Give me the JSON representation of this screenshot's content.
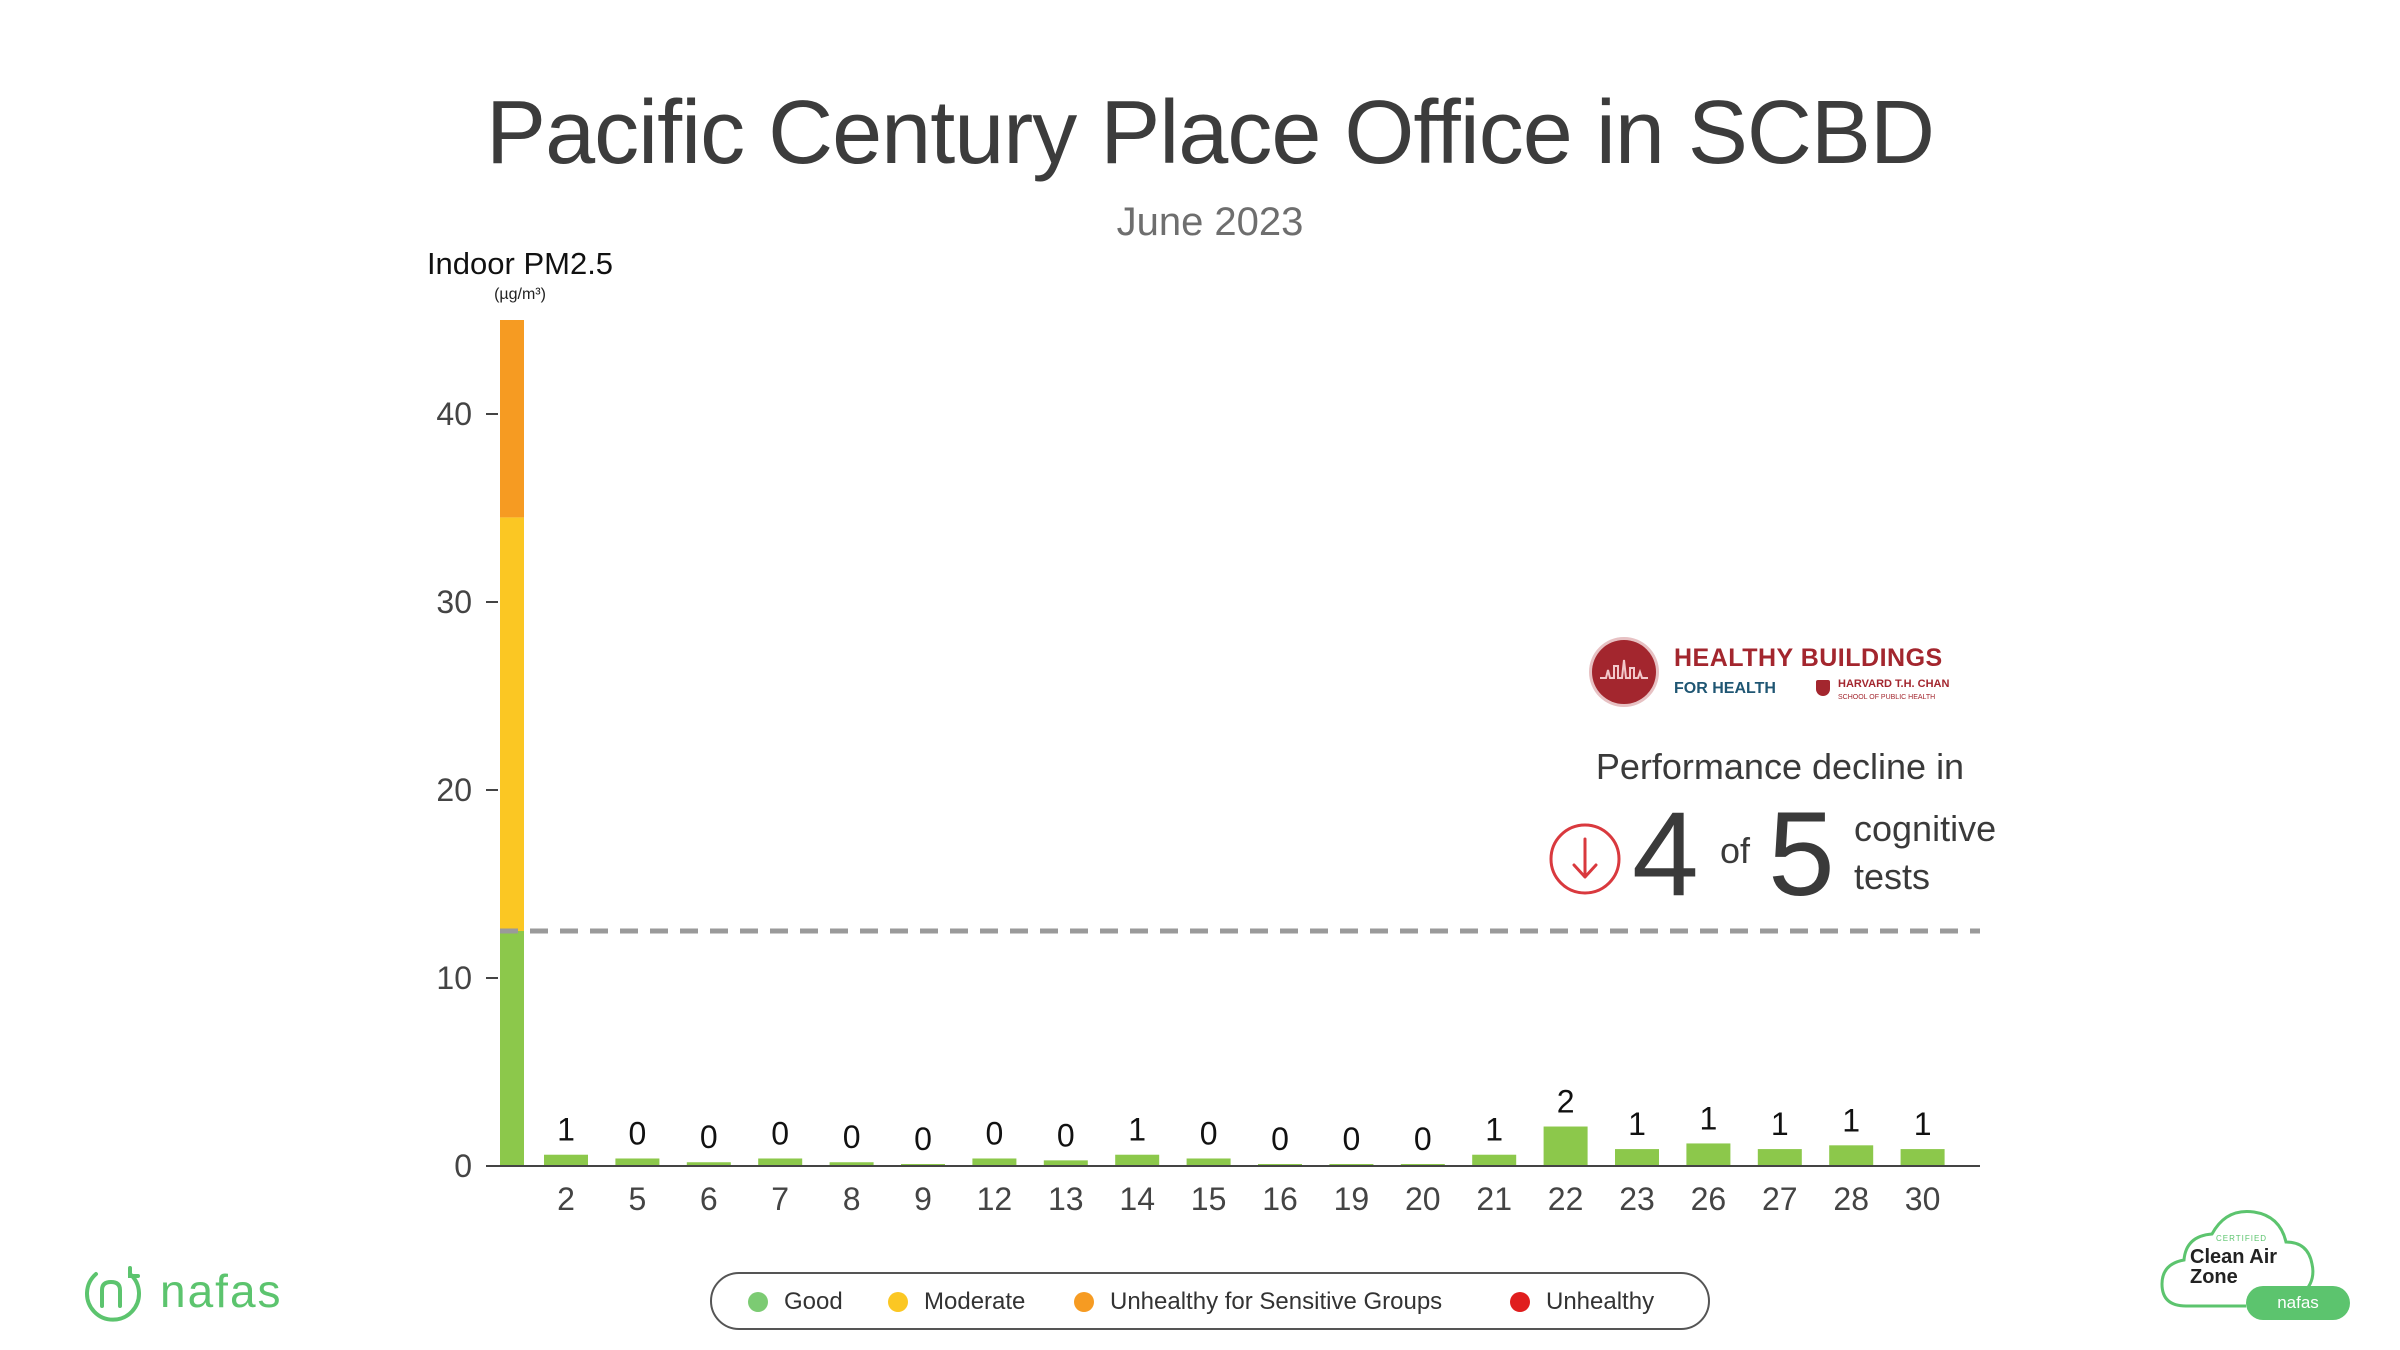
{
  "header": {
    "title": "Pacific Century Place Office in SCBD",
    "subtitle": "June 2023"
  },
  "chart_data": {
    "type": "bar",
    "title": "Pacific Century Place Office in SCBD",
    "subtitle": "June 2023",
    "ylabel": "Indoor PM2.5",
    "yunit": "(µg/m³)",
    "ylim": [
      0,
      45
    ],
    "yticks": [
      0,
      10,
      20,
      30,
      40
    ],
    "threshold": 12.5,
    "first_bar": {
      "segments": [
        {
          "category": "Good",
          "from": 0,
          "to": 12.5
        },
        {
          "category": "Moderate",
          "from": 12.5,
          "to": 34.5
        },
        {
          "category": "Unhealthy for  Sensitive Groups",
          "from": 34.5,
          "to": 45
        }
      ]
    },
    "categories": [
      "2",
      "5",
      "6",
      "7",
      "8",
      "9",
      "12",
      "13",
      "14",
      "15",
      "16",
      "19",
      "20",
      "21",
      "22",
      "23",
      "26",
      "27",
      "28",
      "30"
    ],
    "labels": [
      "1",
      "0",
      "0",
      "0",
      "0",
      "0",
      "0",
      "0",
      "1",
      "0",
      "0",
      "0",
      "0",
      "1",
      "2",
      "1",
      "1",
      "1",
      "1",
      "1"
    ],
    "values": [
      0.6,
      0.4,
      0.2,
      0.4,
      0.2,
      0.1,
      0.4,
      0.3,
      0.6,
      0.4,
      0.1,
      0.1,
      0.1,
      0.6,
      2.1,
      0.9,
      1.2,
      0.9,
      1.1,
      0.9
    ],
    "grid": false
  },
  "colors": {
    "good": "#8cc84b",
    "moderate": "#fbc723",
    "usg": "#f69b22",
    "unhealthy": "#e01e1e",
    "legend_good": "#7ccb73",
    "axis": "#444444",
    "threshold": "#9a9a9a",
    "brand_green": "#5cc46e",
    "hh_red": "#a3262e"
  },
  "legend": {
    "items": [
      {
        "label": "Good",
        "color": "#7ccb73"
      },
      {
        "label": "Moderate",
        "color": "#fbc723"
      },
      {
        "label": "Unhealthy for  Sensitive Groups",
        "color": "#f69b22"
      },
      {
        "label": "Unhealthy",
        "color": "#e01e1e"
      }
    ]
  },
  "hh_logo": {
    "title": "HEALTHY BUILDINGS",
    "subtitle": "FOR HEALTH",
    "harvard": "HARVARD T.H. CHAN",
    "school": "SCHOOL OF PUBLIC HEALTH"
  },
  "performance": {
    "title": "Performance decline in",
    "count": "4",
    "of": "of",
    "total": "5",
    "unit_line1": "cognitive",
    "unit_line2": "tests",
    "icon": "down-arrow-circle-icon"
  },
  "brand": {
    "name": "nafas",
    "icon": "nafas-logo-icon"
  },
  "badge": {
    "small": "CERTIFIED",
    "line1": "Clean Air",
    "line2": "Zone",
    "pill": "nafas"
  }
}
